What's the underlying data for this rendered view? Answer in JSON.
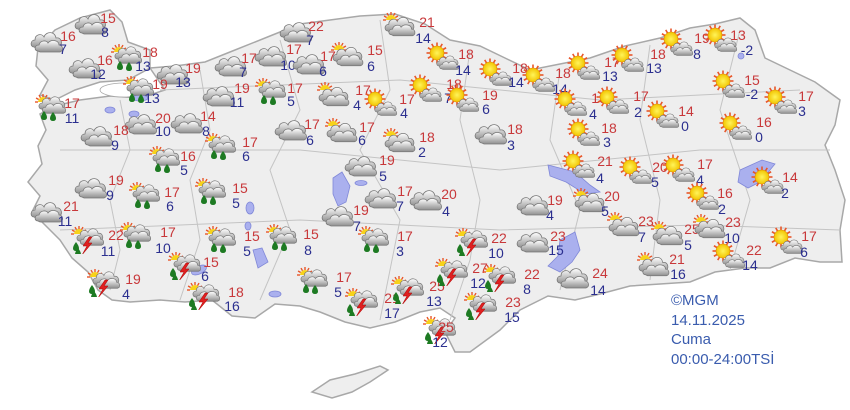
{
  "legend": {
    "copyright": "©MGM",
    "date": "14.11.2025",
    "day": "Cuma",
    "period": "00:00-24:00TSİ"
  },
  "colors": {
    "land": "#eeeeee",
    "border": "#a8a8a8",
    "water": "#aab0ee",
    "high_temp": "#c8383a",
    "low_temp": "#2b2f8f",
    "legend_text": "#3a5cae"
  },
  "icon_types": [
    "cloudy",
    "partly-cloudy-rain",
    "thunderstorm",
    "partly-cloudy",
    "mostly-sunny"
  ],
  "stations": [
    {
      "high": "16",
      "low": "7",
      "icon": "cloudy"
    },
    {
      "high": "15",
      "low": "8",
      "icon": "cloudy"
    },
    {
      "high": "16",
      "low": "12",
      "icon": "cloudy"
    },
    {
      "high": "18",
      "low": "13",
      "icon": "partly-cloudy-rain"
    },
    {
      "high": "19",
      "low": "13",
      "icon": "cloudy"
    },
    {
      "high": "17",
      "low": "7",
      "icon": "cloudy"
    },
    {
      "high": "17",
      "low": "10",
      "icon": "cloudy"
    },
    {
      "high": "22",
      "low": "7",
      "icon": "cloudy"
    },
    {
      "high": "19",
      "low": "13",
      "icon": "partly-cloudy-rain"
    },
    {
      "high": "19",
      "low": "11",
      "icon": "cloudy"
    },
    {
      "high": "17",
      "low": "5",
      "icon": "partly-cloudy-rain"
    },
    {
      "high": "17",
      "low": "6",
      "icon": "cloudy"
    },
    {
      "high": "17",
      "low": "11",
      "icon": "partly-cloudy-rain"
    },
    {
      "high": "20",
      "low": "10",
      "icon": "cloudy"
    },
    {
      "high": "14",
      "low": "8",
      "icon": "cloudy"
    },
    {
      "high": "17",
      "low": "6",
      "icon": "partly-cloudy-rain"
    },
    {
      "high": "17",
      "low": "6",
      "icon": "cloudy"
    },
    {
      "high": "18",
      "low": "9",
      "icon": "cloudy"
    },
    {
      "high": "16",
      "low": "5",
      "icon": "partly-cloudy-rain"
    },
    {
      "high": "19",
      "low": "9",
      "icon": "cloudy"
    },
    {
      "high": "17",
      "low": "6",
      "icon": "partly-cloudy-rain"
    },
    {
      "high": "15",
      "low": "5",
      "icon": "partly-cloudy-rain"
    },
    {
      "high": "21",
      "low": "11",
      "icon": "cloudy"
    },
    {
      "high": "22",
      "low": "11",
      "icon": "thunderstorm"
    },
    {
      "high": "17",
      "low": "10",
      "icon": "partly-cloudy-rain"
    },
    {
      "high": "15",
      "low": "5",
      "icon": "partly-cloudy-rain"
    },
    {
      "high": "15",
      "low": "8",
      "icon": "partly-cloudy-rain"
    },
    {
      "high": "15",
      "low": "6",
      "icon": "thunderstorm"
    },
    {
      "high": "19",
      "low": "4",
      "icon": "thunderstorm"
    },
    {
      "high": "18",
      "low": "16",
      "icon": "thunderstorm"
    },
    {
      "high": "17",
      "low": "5",
      "icon": "partly-cloudy-rain"
    },
    {
      "high": "21",
      "low": "17",
      "icon": "thunderstorm"
    },
    {
      "high": "25",
      "low": "13",
      "icon": "thunderstorm"
    },
    {
      "high": "25",
      "low": "12",
      "icon": "thunderstorm"
    },
    {
      "high": "27",
      "low": "12",
      "icon": "thunderstorm"
    },
    {
      "high": "22",
      "low": "10",
      "icon": "thunderstorm"
    },
    {
      "high": "22",
      "low": "8",
      "icon": "thunderstorm"
    },
    {
      "high": "23",
      "low": "15",
      "icon": "thunderstorm"
    },
    {
      "high": "17",
      "low": "7",
      "icon": "cloudy"
    },
    {
      "high": "20",
      "low": "4",
      "icon": "cloudy"
    },
    {
      "high": "19",
      "low": "7",
      "icon": "cloudy"
    },
    {
      "high": "17",
      "low": "3",
      "icon": "partly-cloudy-rain"
    },
    {
      "high": "19",
      "low": "5",
      "icon": "cloudy"
    },
    {
      "high": "17",
      "low": "6",
      "icon": "partly-cloudy"
    },
    {
      "high": "18",
      "low": "2",
      "icon": "partly-cloudy"
    },
    {
      "high": "17",
      "low": "4",
      "icon": "partly-cloudy"
    },
    {
      "high": "17",
      "low": "4",
      "icon": "mostly-sunny"
    },
    {
      "high": "21",
      "low": "14",
      "icon": "partly-cloudy"
    },
    {
      "high": "15",
      "low": "6",
      "icon": "partly-cloudy"
    },
    {
      "high": "18",
      "low": "14",
      "icon": "mostly-sunny"
    },
    {
      "high": "18",
      "low": "7",
      "icon": "mostly-sunny"
    },
    {
      "high": "19",
      "low": "6",
      "icon": "mostly-sunny"
    },
    {
      "high": "18",
      "low": "3",
      "icon": "cloudy"
    },
    {
      "high": "18",
      "low": "14",
      "icon": "mostly-sunny"
    },
    {
      "high": "18",
      "low": "14",
      "icon": "mostly-sunny"
    },
    {
      "high": "17",
      "low": "13",
      "icon": "mostly-sunny"
    },
    {
      "high": "18",
      "low": "13",
      "icon": "mostly-sunny"
    },
    {
      "high": "19",
      "low": "8",
      "icon": "mostly-sunny"
    },
    {
      "high": "13",
      "low": "-2",
      "icon": "mostly-sunny"
    },
    {
      "high": "19",
      "low": "4",
      "icon": "mostly-sunny"
    },
    {
      "high": "17",
      "low": "2",
      "icon": "mostly-sunny"
    },
    {
      "high": "18",
      "low": "3",
      "icon": "mostly-sunny"
    },
    {
      "high": "14",
      "low": "0",
      "icon": "mostly-sunny"
    },
    {
      "high": "15",
      "low": "-2",
      "icon": "mostly-sunny"
    },
    {
      "high": "17",
      "low": "3",
      "icon": "mostly-sunny"
    },
    {
      "high": "16",
      "low": "0",
      "icon": "mostly-sunny"
    },
    {
      "high": "21",
      "low": "4",
      "icon": "mostly-sunny"
    },
    {
      "high": "20",
      "low": "5",
      "icon": "mostly-sunny"
    },
    {
      "high": "17",
      "low": "4",
      "icon": "mostly-sunny"
    },
    {
      "high": "14",
      "low": "2",
      "icon": "mostly-sunny"
    },
    {
      "high": "16",
      "low": "2",
      "icon": "mostly-sunny"
    },
    {
      "high": "20",
      "low": "5",
      "icon": "partly-cloudy"
    },
    {
      "high": "19",
      "low": "4",
      "icon": "cloudy"
    },
    {
      "high": "23",
      "low": "7",
      "icon": "partly-cloudy"
    },
    {
      "high": "25",
      "low": "5",
      "icon": "partly-cloudy"
    },
    {
      "high": "23",
      "low": "10",
      "icon": "partly-cloudy"
    },
    {
      "high": "22",
      "low": "14",
      "icon": "mostly-sunny"
    },
    {
      "high": "17",
      "low": "6",
      "icon": "mostly-sunny"
    },
    {
      "high": "21",
      "low": "16",
      "icon": "partly-cloudy"
    },
    {
      "high": "23",
      "low": "15",
      "icon": "cloudy"
    },
    {
      "high": "24",
      "low": "14",
      "icon": "cloudy"
    }
  ]
}
